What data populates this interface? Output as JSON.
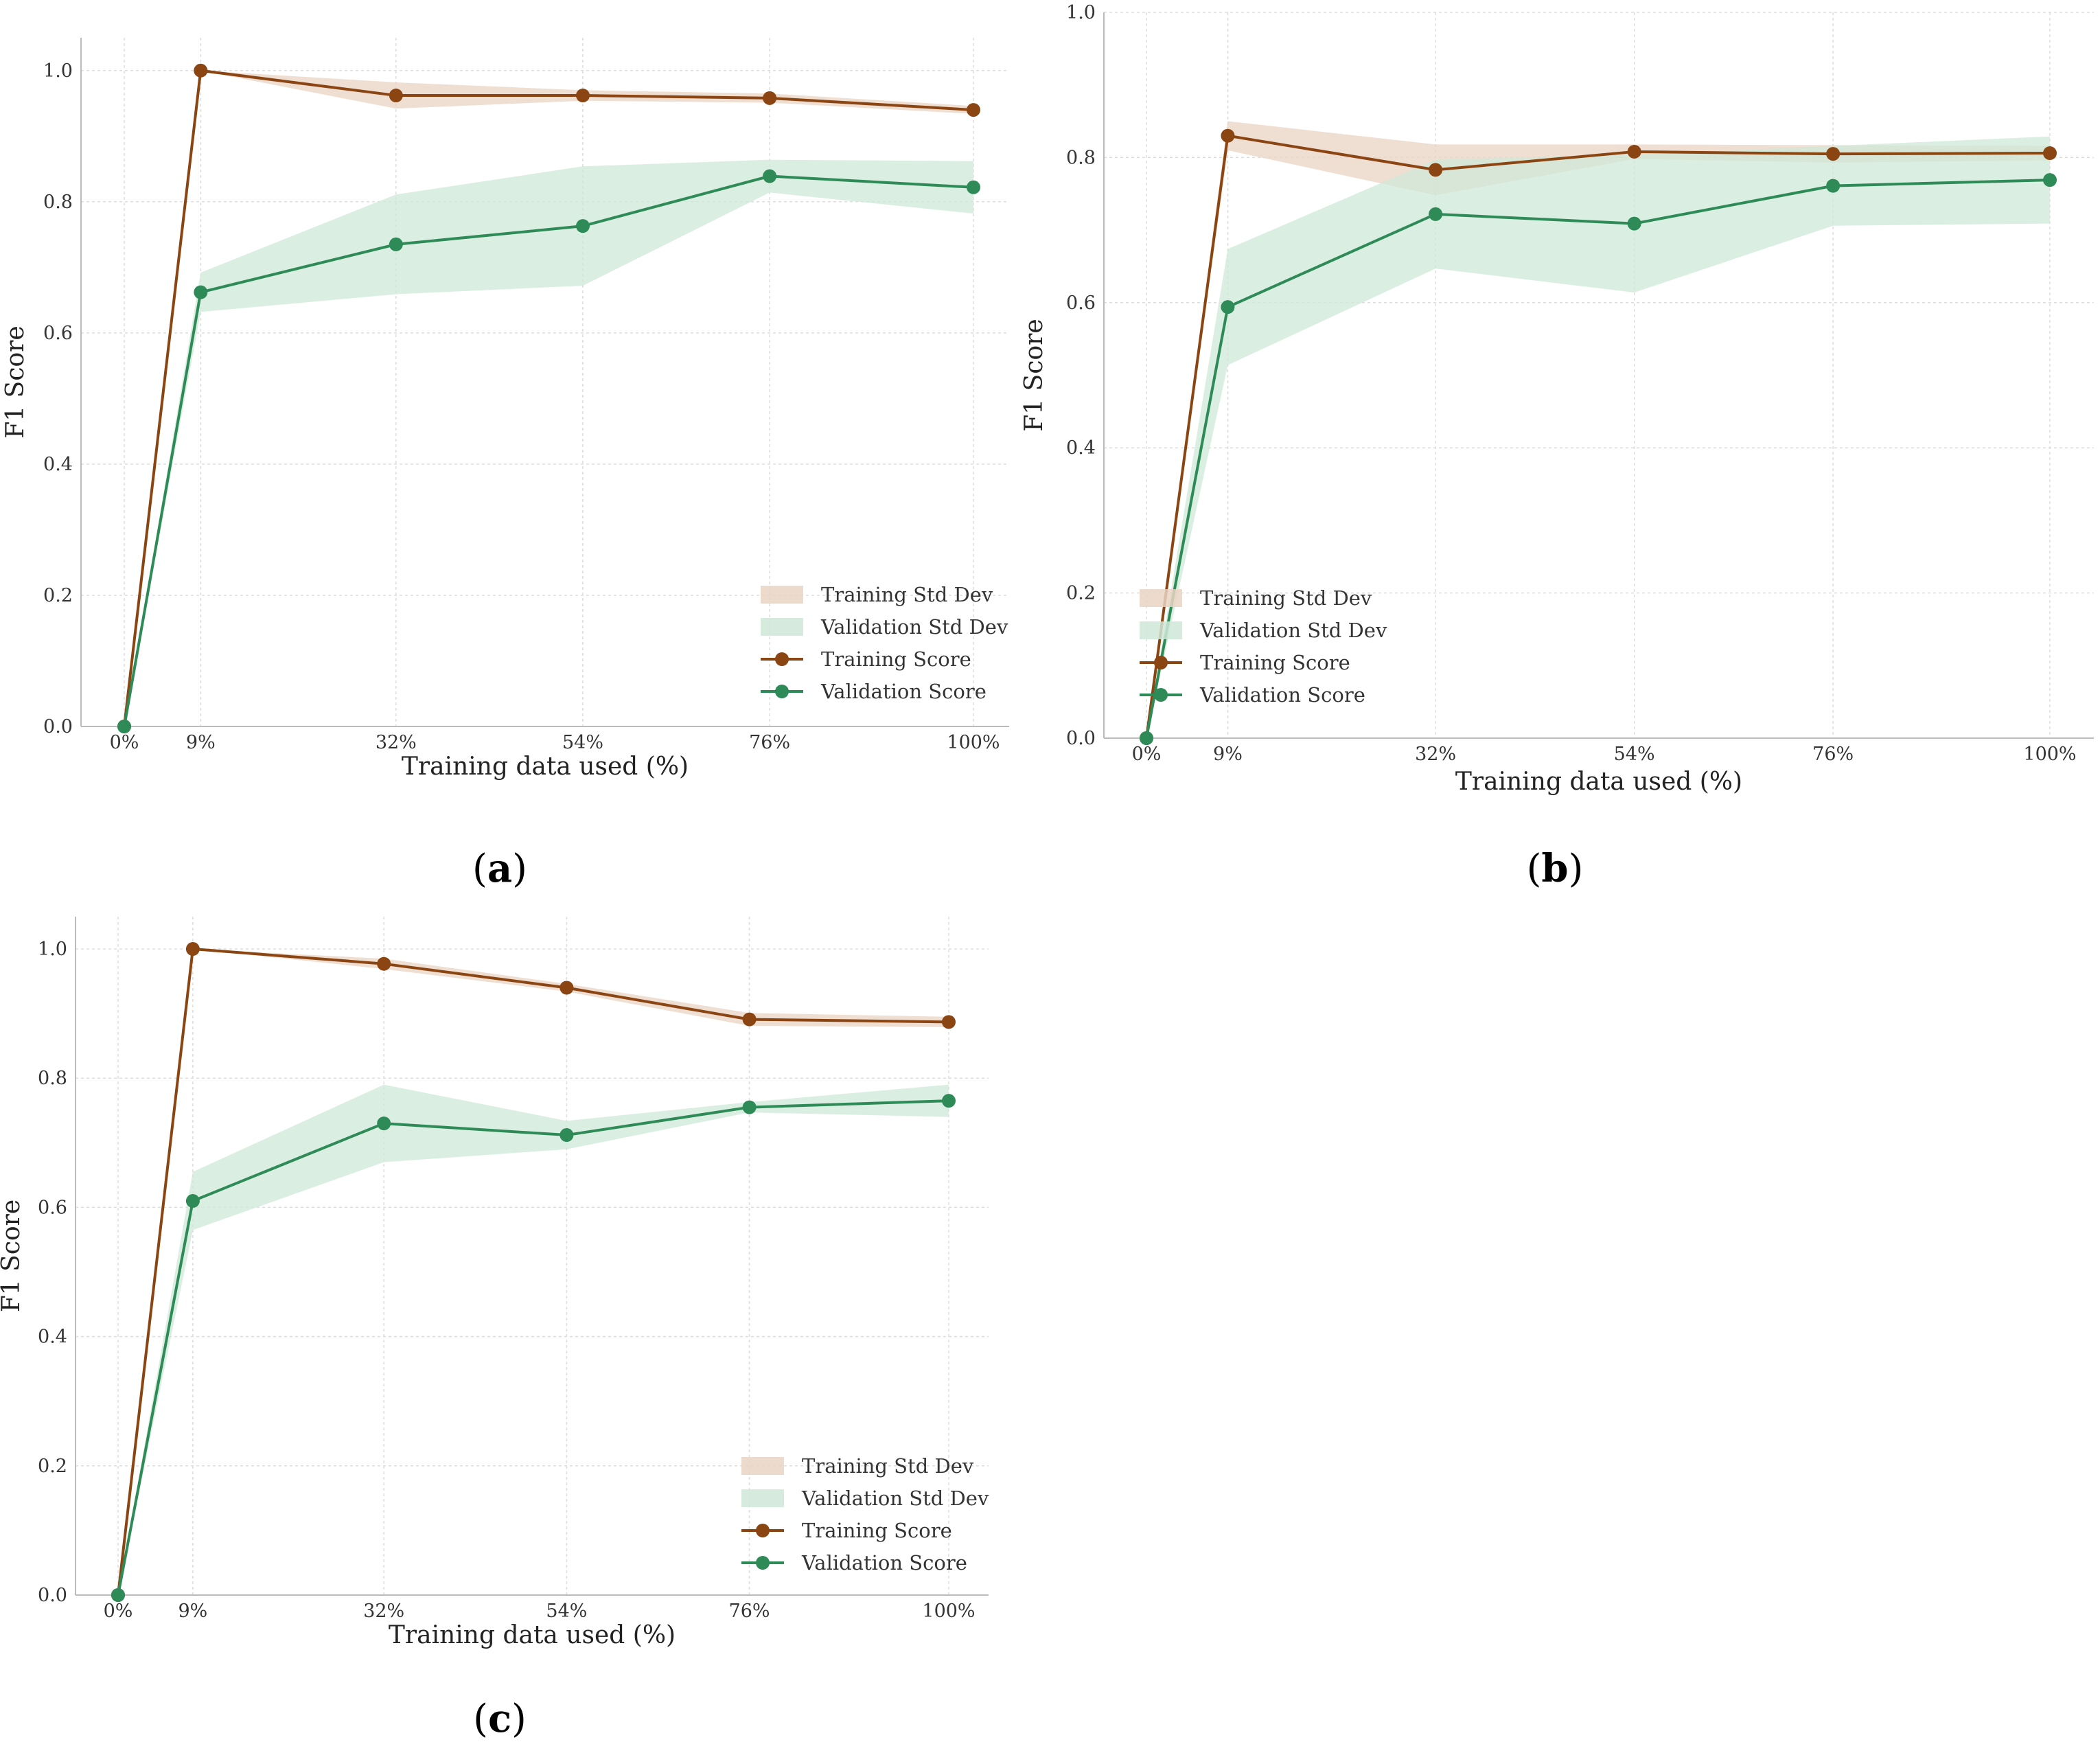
{
  "colors": {
    "training": "#8B4513",
    "validation": "#2E8B57",
    "training_band": "#E9D3C3",
    "validation_band": "#CFE8D8",
    "grid": "#DDDDDD",
    "axis": "#BBBBBB"
  },
  "captions": [
    {
      "open": "(",
      "letter": "a",
      "close": ")"
    },
    {
      "open": "(",
      "letter": "b",
      "close": ")"
    },
    {
      "open": "(",
      "letter": "c",
      "close": ")"
    }
  ],
  "chart_data": [
    {
      "type": "line",
      "panel": "a",
      "xlabel": "Training data used (%)",
      "ylabel": "F1 Score",
      "categories": [
        "0%",
        "9%",
        "32%",
        "54%",
        "76%",
        "100%"
      ],
      "x": [
        0,
        9,
        32,
        54,
        76,
        100
      ],
      "yticks": [
        "0.0",
        "0.2",
        "0.4",
        "0.6",
        "0.8",
        "1.0"
      ],
      "ylim": [
        0,
        1.05
      ],
      "legend": [
        "Training Std Dev",
        "Validation Std Dev",
        "Training Score",
        "Validation Score"
      ],
      "series": [
        {
          "name": "Training Score",
          "values": [
            0.0,
            1.0,
            0.962,
            0.962,
            0.958,
            0.94
          ],
          "std": [
            0.0,
            0.0,
            0.02,
            0.008,
            0.007,
            0.006
          ]
        },
        {
          "name": "Validation Score",
          "values": [
            0.0,
            0.662,
            0.735,
            0.763,
            0.839,
            0.822
          ],
          "std": [
            0.0,
            0.03,
            0.076,
            0.091,
            0.025,
            0.04
          ]
        }
      ]
    },
    {
      "type": "line",
      "panel": "b",
      "xlabel": "Training data used (%)",
      "ylabel": "F1 Score",
      "categories": [
        "0%",
        "9%",
        "32%",
        "54%",
        "76%",
        "100%"
      ],
      "x": [
        0,
        9,
        32,
        54,
        76,
        100
      ],
      "yticks": [
        "0.0",
        "0.2",
        "0.4",
        "0.6",
        "0.8",
        "1.0"
      ],
      "ylim": [
        0,
        1.0
      ],
      "legend": [
        "Training Std Dev",
        "Validation Std Dev",
        "Training Score",
        "Validation Score"
      ],
      "series": [
        {
          "name": "Training Score",
          "values": [
            0.0,
            0.83,
            0.783,
            0.808,
            0.805,
            0.806
          ],
          "std": [
            0.0,
            0.02,
            0.035,
            0.01,
            0.012,
            0.01
          ]
        },
        {
          "name": "Validation Score",
          "values": [
            0.0,
            0.594,
            0.722,
            0.709,
            0.761,
            0.769
          ],
          "std": [
            0.0,
            0.08,
            0.075,
            0.095,
            0.055,
            0.06
          ]
        }
      ]
    },
    {
      "type": "line",
      "panel": "c",
      "xlabel": "Training data used (%)",
      "ylabel": "F1 Score",
      "categories": [
        "0%",
        "9%",
        "32%",
        "54%",
        "76%",
        "100%"
      ],
      "x": [
        0,
        9,
        32,
        54,
        76,
        100
      ],
      "yticks": [
        "0.0",
        "0.2",
        "0.4",
        "0.6",
        "0.8",
        "1.0"
      ],
      "ylim": [
        0,
        1.05
      ],
      "legend": [
        "Training Std Dev",
        "Validation Std Dev",
        "Training Score",
        "Validation Score"
      ],
      "series": [
        {
          "name": "Training Score",
          "values": [
            0.0,
            1.0,
            0.977,
            0.94,
            0.891,
            0.887
          ],
          "std": [
            0.0,
            0.0,
            0.008,
            0.006,
            0.01,
            0.008
          ]
        },
        {
          "name": "Validation Score",
          "values": [
            0.0,
            0.61,
            0.73,
            0.712,
            0.755,
            0.765
          ],
          "std": [
            0.0,
            0.045,
            0.06,
            0.022,
            0.008,
            0.025
          ]
        }
      ]
    }
  ]
}
